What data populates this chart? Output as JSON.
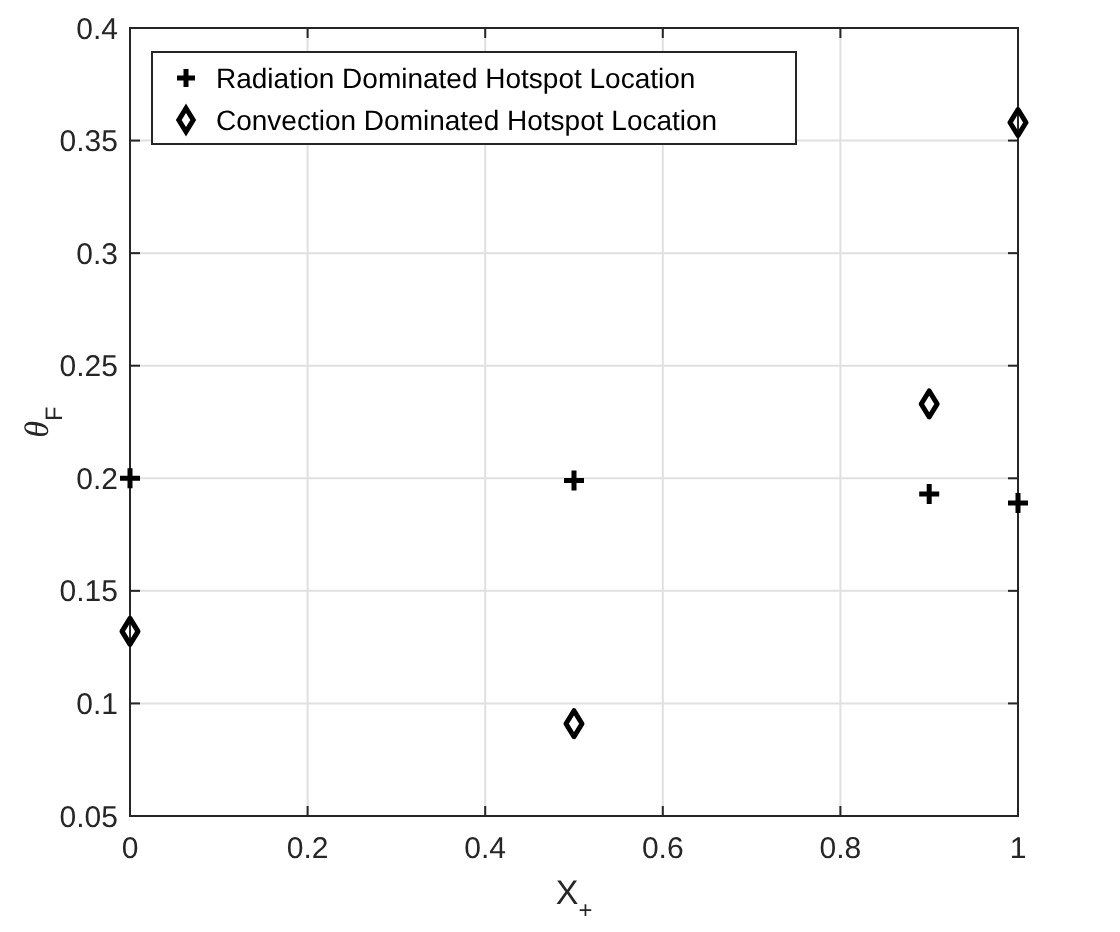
{
  "chart_data": {
    "type": "scatter",
    "xlabel": "X$_{+}$",
    "ylabel": "θ$_{F}$",
    "xlim": [
      0,
      1
    ],
    "xticks": [
      0,
      0.2,
      0.4,
      0.6,
      0.8,
      1
    ],
    "ylim": [
      0.05,
      0.4
    ],
    "yticks": [
      0.05,
      0.1,
      0.15,
      0.2,
      0.25,
      0.3,
      0.35,
      0.4
    ],
    "grid": true,
    "legend": "top left",
    "series": [
      {
        "name": "Radiation Dominated Hotspot Location",
        "color": "#000000",
        "marker": "cross",
        "x": [
          0,
          0.5,
          0.9,
          1
        ],
        "values": [
          0.2,
          0.199,
          0.193,
          0.189
        ]
      },
      {
        "name": "Convection Dominated Hotspot Location",
        "color": "#000000",
        "marker": "diamond",
        "x": [
          0,
          0.5,
          0.9,
          1
        ],
        "values": [
          0.132,
          0.091,
          0.233,
          0.358
        ]
      }
    ]
  }
}
